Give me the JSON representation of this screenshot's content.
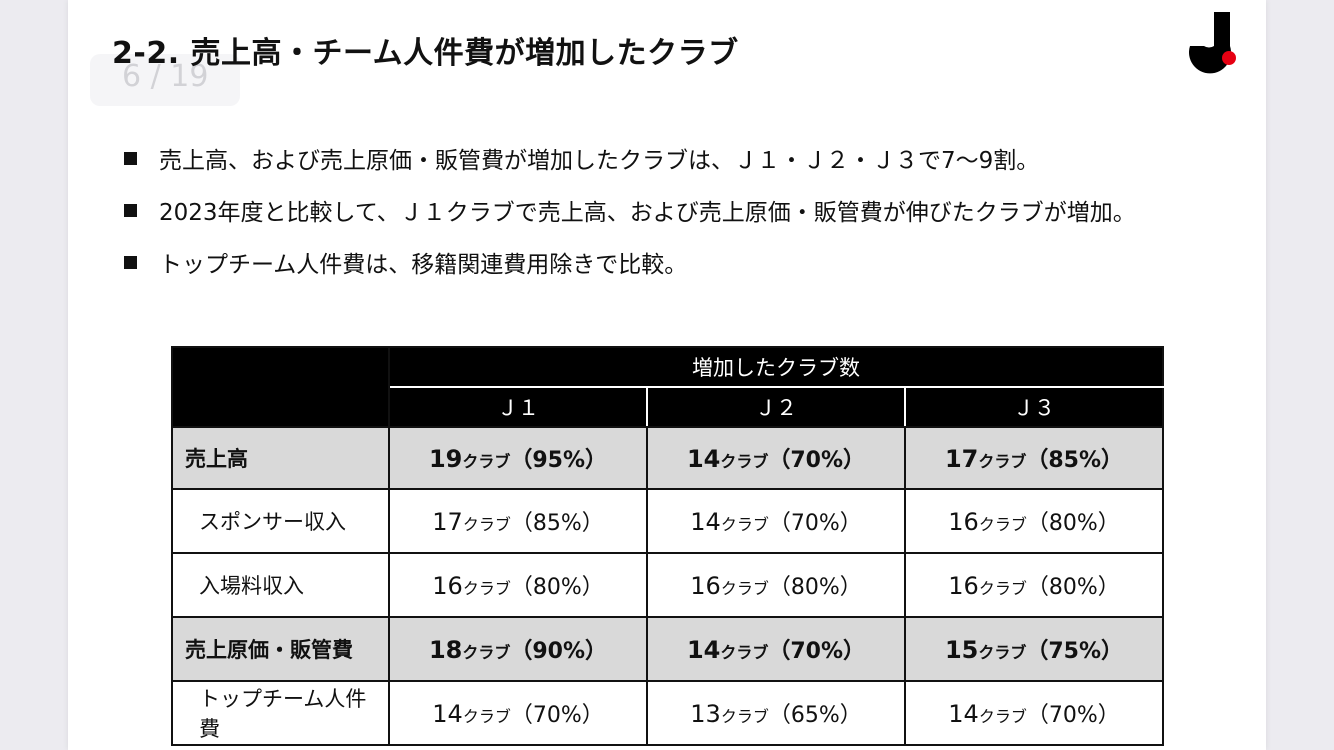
{
  "slide": {
    "title": "2-2. 売上高・チーム人件費が増加したクラブ",
    "page_indicator": "6 / 19",
    "logo_icon": "j-league-logo",
    "colors": {
      "logo_black": "#000000",
      "logo_red": "#e60012",
      "bold_row_bg": "#d9d9d9"
    }
  },
  "bullets": [
    "売上高、および売上原価・販管費が増加したクラブは、Ｊ１・Ｊ２・Ｊ３で7～9割。",
    "2023年度と比較して、Ｊ１クラブで売上高、および売上原価・販管費が伸びたクラブが増加。",
    "トップチーム人件費は、移籍関連費用除きで比較。"
  ],
  "table": {
    "group_header": "増加したクラブ数",
    "columns": [
      "Ｊ１",
      "Ｊ２",
      "Ｊ３"
    ],
    "rows": [
      {
        "label": "売上高",
        "bold": true,
        "cells": [
          {
            "num": "19",
            "unit": "クラブ",
            "pct": "（95%）"
          },
          {
            "num": "14",
            "unit": "クラブ",
            "pct": "（70%）"
          },
          {
            "num": "17",
            "unit": "クラブ",
            "pct": "（85%）"
          }
        ]
      },
      {
        "label": "スポンサー収入",
        "bold": false,
        "cells": [
          {
            "num": "17",
            "unit": "クラブ",
            "pct": "（85%）"
          },
          {
            "num": "14",
            "unit": "クラブ",
            "pct": "（70%）"
          },
          {
            "num": "16",
            "unit": "クラブ",
            "pct": "（80%）"
          }
        ]
      },
      {
        "label": "入場料収入",
        "bold": false,
        "cells": [
          {
            "num": "16",
            "unit": "クラブ",
            "pct": "（80%）"
          },
          {
            "num": "16",
            "unit": "クラブ",
            "pct": "（80%）"
          },
          {
            "num": "16",
            "unit": "クラブ",
            "pct": "（80%）"
          }
        ]
      },
      {
        "label": "売上原価・販管費",
        "bold": true,
        "cells": [
          {
            "num": "18",
            "unit": "クラブ",
            "pct": "（90%）"
          },
          {
            "num": "14",
            "unit": "クラブ",
            "pct": "（70%）"
          },
          {
            "num": "15",
            "unit": "クラブ",
            "pct": "（75%）"
          }
        ]
      },
      {
        "label": "トップチーム人件費",
        "bold": false,
        "cells": [
          {
            "num": "14",
            "unit": "クラブ",
            "pct": "（70%）"
          },
          {
            "num": "13",
            "unit": "クラブ",
            "pct": "（65%）"
          },
          {
            "num": "14",
            "unit": "クラブ",
            "pct": "（70%）"
          }
        ]
      }
    ]
  }
}
